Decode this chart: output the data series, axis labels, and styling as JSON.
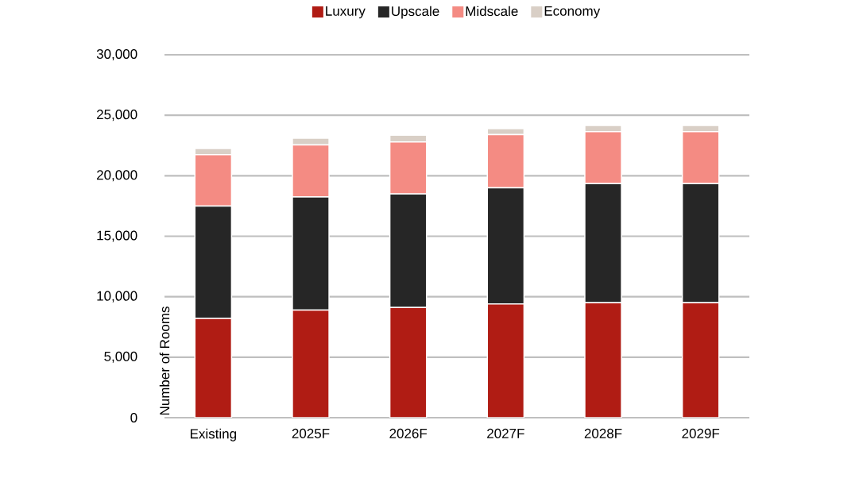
{
  "chart_data": {
    "type": "bar",
    "stacked": true,
    "ylabel": "Number of Rooms",
    "categories": [
      "Existing",
      "2025F",
      "2026F",
      "2027F",
      "2028F",
      "2029F"
    ],
    "series": [
      {
        "name": "Luxury",
        "color": "#b01c14",
        "values": [
          8200,
          8900,
          9100,
          9400,
          9500,
          9500
        ]
      },
      {
        "name": "Upscale",
        "color": "#262626",
        "values": [
          9300,
          9350,
          9400,
          9600,
          9850,
          9850
        ]
      },
      {
        "name": "Midscale",
        "color": "#f48b83",
        "values": [
          4250,
          4300,
          4300,
          4400,
          4300,
          4300
        ]
      },
      {
        "name": "Economy",
        "color": "#d9cfc6",
        "values": [
          500,
          550,
          550,
          500,
          500,
          500
        ]
      }
    ],
    "ylim": [
      0,
      30000
    ],
    "yticks": [
      {
        "value": 0,
        "label": "0"
      },
      {
        "value": 5000,
        "label": "5,000"
      },
      {
        "value": 10000,
        "label": "10,000"
      },
      {
        "value": 15000,
        "label": "15,000"
      },
      {
        "value": 20000,
        "label": "20,000"
      },
      {
        "value": 25000,
        "label": "25,000"
      },
      {
        "value": 30000,
        "label": "30,000"
      }
    ],
    "grid": "y",
    "legend": "top"
  }
}
